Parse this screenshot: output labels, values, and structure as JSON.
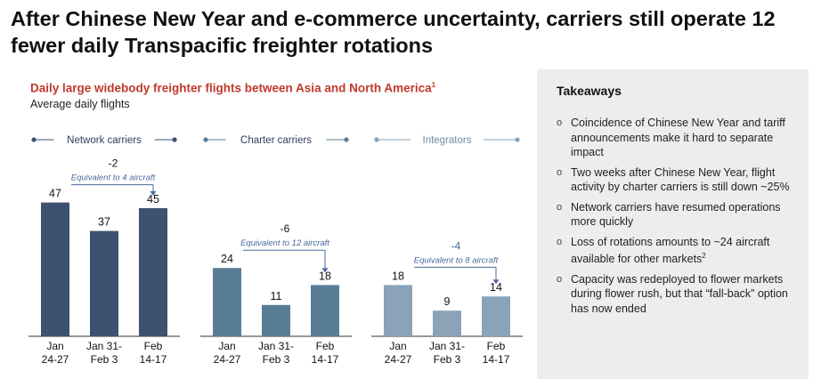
{
  "headline": "After Chinese New Year and e-commerce uncertainty, carriers still operate 12 fewer daily Transpacific freighter rotations",
  "chart_data": {
    "type": "bar",
    "title": "Daily large widebody freighter flights between Asia and North America",
    "title_footnote": "1",
    "subtitle": "Average daily flights",
    "categories": [
      "Jan\n24-27",
      "Jan 31-\nFeb 3",
      "Feb\n14-17"
    ],
    "ylim": [
      0,
      52
    ],
    "panels": [
      {
        "name": "Network carriers",
        "values": [
          47,
          37,
          45
        ],
        "color": "#3e5170",
        "change": "-2",
        "equivalent": "Equivalent to 4 aircraft"
      },
      {
        "name": "Charter carriers",
        "values": [
          24,
          11,
          18
        ],
        "color": "#5a7d96",
        "change": "-6",
        "equivalent": "Equivalent to 12 aircraft"
      },
      {
        "name": "Integrators",
        "values": [
          18,
          9,
          14
        ],
        "color": "#8aa3b8",
        "change": "-4",
        "equivalent": "Equivalent to 8 aircraft"
      }
    ]
  },
  "takeaways": {
    "title": "Takeaways",
    "bullet": "o",
    "items": [
      {
        "text": "Coincidence of Chinese New Year and tariff announcements make it hard to separate impact"
      },
      {
        "text": "Two weeks after Chinese New Year, flight activity by charter carriers is still down ~25%"
      },
      {
        "text": "Network carriers have resumed operations more quickly"
      },
      {
        "text": "Loss of rotations amounts to ~24 aircraft available for other markets",
        "sup": "2"
      },
      {
        "text": "Capacity was redeployed to flower markets during flower rush, but that “fall-back” option has now ended"
      }
    ]
  },
  "colors": {
    "title_red": "#c0392b",
    "panel_bg": "#ededed",
    "annotation_blue": "#4a6a9c"
  }
}
